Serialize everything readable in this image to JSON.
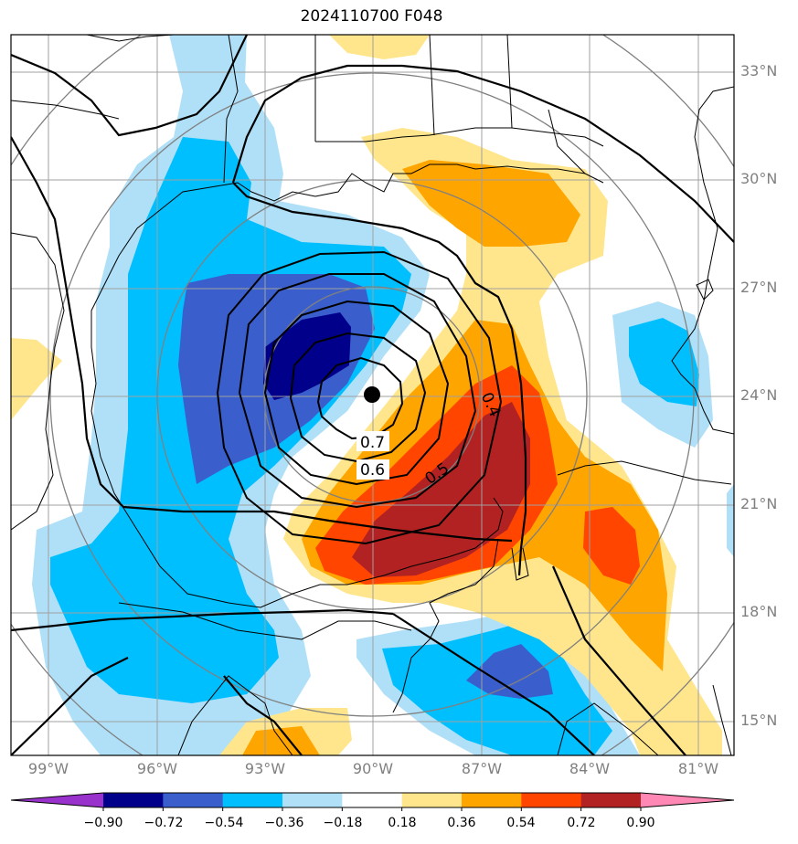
{
  "title": "2024110700 F048",
  "lat_labels": [
    "33°N",
    "30°N",
    "27°N",
    "24°N",
    "21°N",
    "18°N",
    "15°N"
  ],
  "lon_labels": [
    "99°W",
    "96°W",
    "93°W",
    "90°W",
    "87°W",
    "84°W",
    "81°W"
  ],
  "contour_labels": [
    "0.7",
    "0.6",
    "0.5",
    "0.4"
  ],
  "colorbar": {
    "ticks": [
      "−0.90",
      "−0.72",
      "−0.54",
      "−0.36",
      "−0.18",
      "0.18",
      "0.36",
      "0.54",
      "0.72",
      "0.90"
    ],
    "colors": [
      "#9932cc",
      "#00008b",
      "#3a5fcd",
      "#00bfff",
      "#b0e0f8",
      "#ffffff",
      "#ffe68c",
      "#ffa500",
      "#ff4500",
      "#b22222",
      "#ff88b4"
    ]
  },
  "colors": {
    "neg_light": "#b0e0f8",
    "neg_mid": "#00bfff",
    "neg_strong": "#3a5fcd",
    "neg_max": "#00008b",
    "pos_light": "#ffe68c",
    "pos_mid": "#ffa500",
    "pos_strong": "#ff4500",
    "pos_max": "#b22222"
  }
}
